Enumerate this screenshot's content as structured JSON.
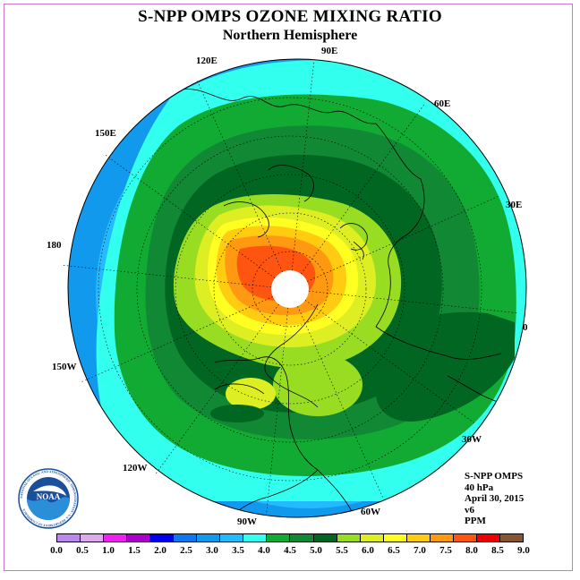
{
  "title": "S-NPP OMPS OZONE MIXING RATIO",
  "subtitle": "Northern Hemisphere",
  "longitude_labels": [
    "90E",
    "60E",
    "30E",
    "0",
    "30W",
    "60W",
    "90W",
    "120W",
    "150W",
    "180",
    "150E",
    "120E"
  ],
  "info": {
    "instrument": "S-NPP OMPS",
    "level": "40 hPa",
    "date": "April 30, 2015",
    "version": "v6",
    "units": "PPM"
  },
  "logo": {
    "text": "NOAA",
    "ring_text": "NATIONAL OCEANIC AND ATMOSPHERIC ADMINISTRATION · U.S. DEPARTMENT OF COMMERCE"
  },
  "colorbar": {
    "ticks": [
      "0.0",
      "0.5",
      "1.0",
      "1.5",
      "2.0",
      "2.5",
      "3.0",
      "3.5",
      "4.0",
      "4.5",
      "5.0",
      "5.5",
      "6.0",
      "6.5",
      "7.0",
      "7.5",
      "8.0",
      "8.5",
      "9.0"
    ],
    "colors": [
      "#bb88ee",
      "#ddaaee",
      "#ee22ee",
      "#aa00cc",
      "#0000ee",
      "#1177ee",
      "#1199ee",
      "#22bbff",
      "#33ffee",
      "#11aa33",
      "#118833",
      "#006622",
      "#99dd22",
      "#ddee22",
      "#ffff22",
      "#ffcc11",
      "#ff9911",
      "#ff5511",
      "#ee0000",
      "#885533"
    ]
  },
  "map_colors": {
    "ring_3_0": "#1199ee",
    "ring_3_5": "#22bbff",
    "ring_4_0": "#33ffee",
    "ring_4_5": "#11aa33",
    "ring_5_0": "#118833",
    "ring_5_5": "#006622",
    "band_6_0": "#99dd22",
    "band_6_5": "#ddee22",
    "band_7_0": "#ffff22",
    "band_7_5": "#ffcc11",
    "band_8_0": "#ff9911",
    "band_8_5": "#ff5511"
  }
}
